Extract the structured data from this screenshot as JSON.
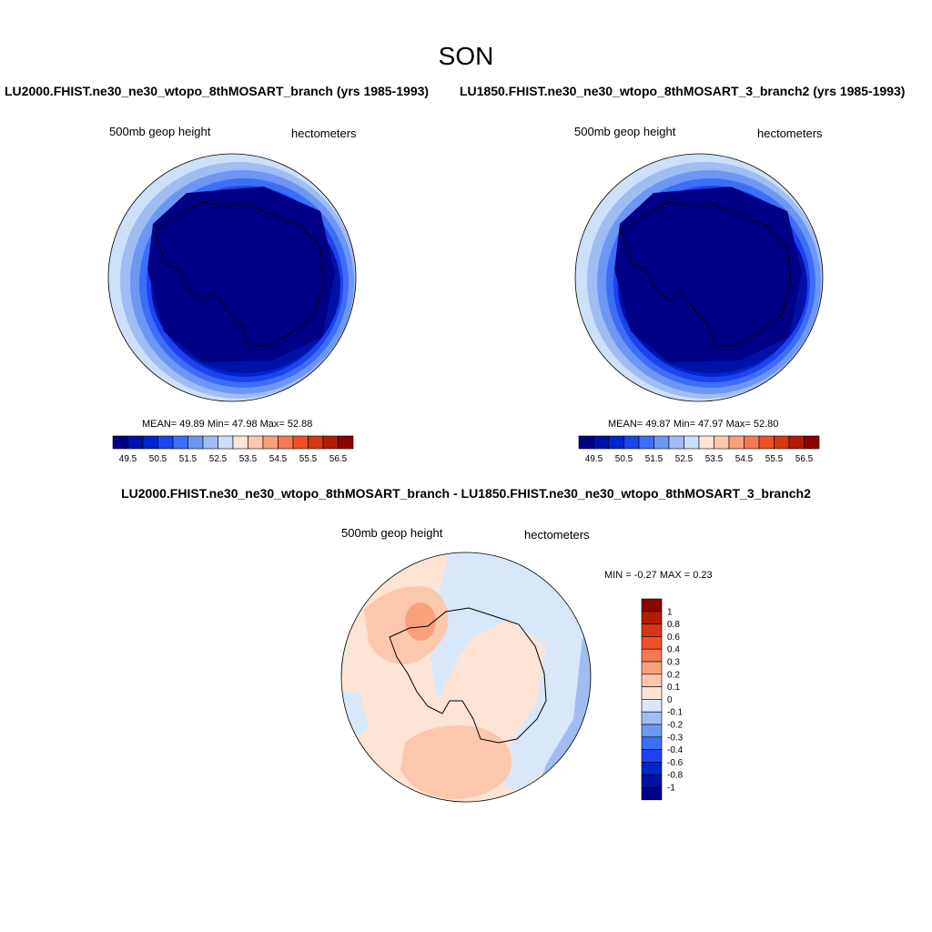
{
  "figure": {
    "season": "SON"
  },
  "panels": [
    {
      "title": "LU2000.FHIST.ne30_ne30_wtopo_8thMOSART_branch (yrs 1985-1993)",
      "variable": "500mb geop height",
      "units": "hectometers",
      "stats": "MEAN=  49.89  Min=  47.98  Max=  52.88"
    },
    {
      "title": "LU1850.FHIST.ne30_ne30_wtopo_8thMOSART_3_branch2 (yrs 1985-1993)",
      "variable": "500mb geop height",
      "units": "hectometers",
      "stats": "MEAN=  49.87  Min=  47.97  Max=  52.80"
    }
  ],
  "difference": {
    "title": "LU2000.FHIST.ne30_ne30_wtopo_8thMOSART_branch - LU1850.FHIST.ne30_ne30_wtopo_8thMOSART_3_branch2",
    "variable": "500mb geop height",
    "units": "hectometers",
    "stats": "MIN =  -0.27 MAX =   0.23"
  },
  "colorbar_main": {
    "labels": [
      "49.5",
      "50.5",
      "51.5",
      "52.5",
      "53.5",
      "54.5",
      "55.5",
      "56.5"
    ],
    "colors": [
      "#000087",
      "#0011a8",
      "#0025cc",
      "#1d43ef",
      "#3d6ef7",
      "#6e97f4",
      "#a0bdf2",
      "#cce0fa",
      "#fde4d4",
      "#fcc8ad",
      "#f9a07c",
      "#f57a53",
      "#ed5226",
      "#d43810",
      "#b01d04",
      "#8c0000"
    ]
  },
  "colorbar_diff": {
    "labels": [
      "1",
      "0.8",
      "0.6",
      "0.4",
      "0.3",
      "0.2",
      "0.1",
      "0",
      "-0.1",
      "-0.2",
      "-0.3",
      "-0.4",
      "-0.6",
      "-0.8",
      "-1"
    ],
    "colors": [
      "#8c0000",
      "#b01d04",
      "#d43810",
      "#ed5226",
      "#f57a53",
      "#f9a07c",
      "#fcc8ad",
      "#fde4d4",
      "#d8e8fa",
      "#a0bdf2",
      "#6e97f4",
      "#3d6ef7",
      "#1d43ef",
      "#0025cc",
      "#0011a8",
      "#000087"
    ]
  },
  "map_colors": {
    "ring1": "#cce0fa",
    "ring2": "#a0bdf2",
    "ring3": "#6e97f4",
    "ring4": "#3d6ef7",
    "ring5": "#1d43ef",
    "ring6": "#0025cc",
    "ring7": "#0011a8",
    "core": "#000087",
    "diff_pos1": "#fde4d4",
    "diff_pos2": "#fcc8ad",
    "diff_pos3": "#f9a07c",
    "diff_neg1": "#d8e8fa",
    "diff_neg2": "#a0bdf2"
  }
}
